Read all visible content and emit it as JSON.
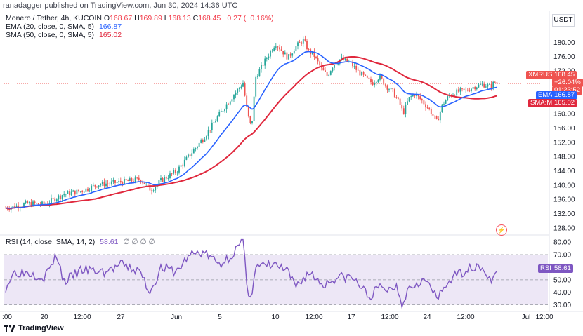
{
  "publisher": "ranadagger published on TradingView.com, Jun 30, 2024 14:36 UTC",
  "legend": {
    "symbol": "Monero / Tether, 4h, KUCOIN",
    "ohlc": [
      {
        "key": "O",
        "value": "168.67"
      },
      {
        "key": "H",
        "value": "169.89"
      },
      {
        "key": "L",
        "value": "168.13"
      },
      {
        "key": "C",
        "value": "168.45"
      }
    ],
    "change": "−0.27 (−0.16%)",
    "ema_label": "EMA (20, close, 0, SMA, 5)",
    "ema_value": "166.87",
    "sma_label": "SMA (50, close, 0, SMA, 5)",
    "sma_value": "165.02"
  },
  "currency": "USDT",
  "price_badges": {
    "symbol_tag": "XMRUSDT",
    "price": "168.45",
    "change": "+26.04%",
    "countdown": "01:23:52",
    "ema_tag": "EMA",
    "ema_value": "166.87",
    "sma_tag": "SMA:MA",
    "sma_value": "165.02"
  },
  "rsi_legend": {
    "label": "RSI (14, close, SMA, 14, 2)",
    "value": "58.61",
    "placeholders": "∅ ∅ ∅ ∅"
  },
  "rsi_badge": {
    "tag": "RSI",
    "value": "58.61"
  },
  "footer": {
    "brand": "TradingView"
  },
  "colors": {
    "up": "#26a69a",
    "down": "#ef5350",
    "ema": "#2962ff",
    "sma": "#e0283d",
    "rsi": "#7e57c2",
    "rsi_band": "#ede7f6"
  },
  "chart_data": [
    {
      "type": "candlestick",
      "title": "Monero / Tether, 4h, KUCOIN",
      "x_tick_labels": [
        ":00",
        "20",
        "12:00",
        "27",
        "Jun",
        "5",
        "10",
        "12:00",
        "17",
        "12:00",
        "24",
        "12:00",
        "Jul",
        "12:00"
      ],
      "y_tick_labels": [
        "128.00",
        "132.00",
        "136.00",
        "140.00",
        "144.00",
        "148.00",
        "152.00",
        "156.00",
        "160.00",
        "164.00",
        "168.00",
        "172.00",
        "176.00",
        "180.00"
      ],
      "ylim": [
        126,
        184
      ],
      "close_approx": [
        {
          "x": "20",
          "y": 134.6
        },
        {
          "x": "27",
          "y": 140.8
        },
        {
          "x": "Jun",
          "y": 142.4
        },
        {
          "x": "5",
          "y": 160.0
        },
        {
          "x": "10",
          "y": 177.6
        },
        {
          "x": "12:00",
          "y": 176.4
        },
        {
          "x": "17",
          "y": 174.0
        },
        {
          "x": "12:00",
          "y": 165.6
        },
        {
          "x": "24",
          "y": 160.8
        },
        {
          "x": "12:00",
          "y": 166.4
        },
        {
          "x": "Jul",
          "y": 168.45
        }
      ],
      "series": [
        {
          "name": "EMA (20, close, 0, SMA, 5)",
          "last": 166.87
        },
        {
          "name": "SMA (50, close, 0, SMA, 5)",
          "last": 165.02
        }
      ],
      "current_price": 168.45,
      "grid": false
    },
    {
      "type": "line",
      "title": "RSI (14, close, SMA, 14, 2)",
      "y_tick_labels": [
        "80.00",
        "70.00",
        "60.00",
        "50.00",
        "40.00",
        "30.00"
      ],
      "ylim": [
        27,
        84
      ],
      "band": [
        30,
        70
      ],
      "midline": 50,
      "approx": [
        {
          "x": "20",
          "y": 50
        },
        {
          "x": "27",
          "y": 58
        },
        {
          "x": "Jun",
          "y": 55
        },
        {
          "x": "5",
          "y": 70
        },
        {
          "x": "10",
          "y": 55
        },
        {
          "x": "17",
          "y": 48
        },
        {
          "x": "12:00",
          "y": 33
        },
        {
          "x": "24",
          "y": 48
        },
        {
          "x": "Jul",
          "y": 58.61
        }
      ],
      "last": 58.61
    }
  ]
}
